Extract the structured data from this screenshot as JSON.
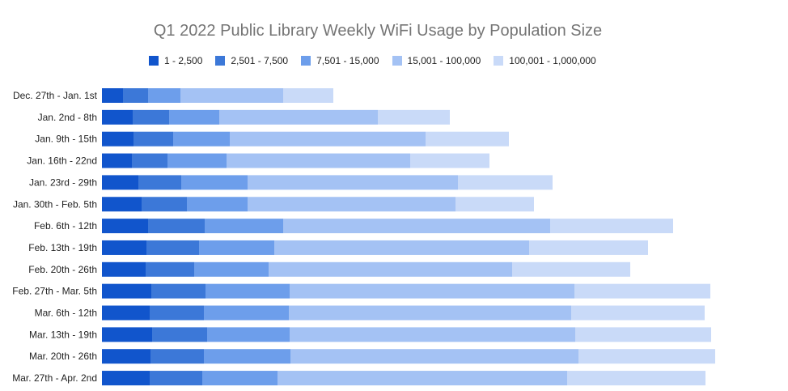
{
  "chart_data": {
    "type": "bar",
    "orientation": "horizontal",
    "stacked": true,
    "title": "Q1 2022 Public Library Weekly WiFi Usage by Population Size",
    "xlabel": "",
    "ylabel": "",
    "legend_position": "top",
    "grid": false,
    "categories": [
      "Dec. 27th - Jan. 1st",
      "Jan. 2nd - 8th",
      "Jan. 9th - 15th",
      "Jan. 16th - 22nd",
      "Jan. 23rd - 29th",
      "Jan. 30th - Feb. 5th",
      "Feb. 6th - 12th",
      "Feb. 13th - 19th",
      "Feb. 20th - 26th",
      "Feb. 27th - Mar. 5th",
      "Mar. 6th - 12th",
      "Mar. 13th - 19th",
      "Mar. 20th - 26th",
      "Mar. 27th - Apr. 2nd"
    ],
    "series": [
      {
        "name": "1 - 2,500",
        "color": "#1155cc",
        "values": [
          26,
          38,
          39,
          37,
          45,
          49,
          57,
          55,
          54,
          61,
          59,
          62,
          60,
          59
        ]
      },
      {
        "name": "2,501 - 7,500",
        "color": "#3c78d8",
        "values": [
          31,
          45,
          49,
          44,
          53,
          56,
          70,
          65,
          60,
          67,
          67,
          68,
          66,
          65
        ]
      },
      {
        "name": "7,501 - 15,000",
        "color": "#6d9eeb",
        "values": [
          40,
          62,
          70,
          73,
          82,
          75,
          97,
          93,
          92,
          104,
          105,
          102,
          107,
          93
        ]
      },
      {
        "name": "15,001 - 100,000",
        "color": "#a4c2f4",
        "values": [
          127,
          196,
          242,
          227,
          260,
          257,
          330,
          315,
          301,
          352,
          349,
          353,
          356,
          358
        ]
      },
      {
        "name": "100,001 - 1,000,000",
        "color": "#c9daf8",
        "values": [
          62,
          89,
          103,
          98,
          117,
          97,
          152,
          147,
          146,
          168,
          165,
          168,
          169,
          171
        ]
      }
    ],
    "xlim": [
      0,
      800
    ]
  }
}
